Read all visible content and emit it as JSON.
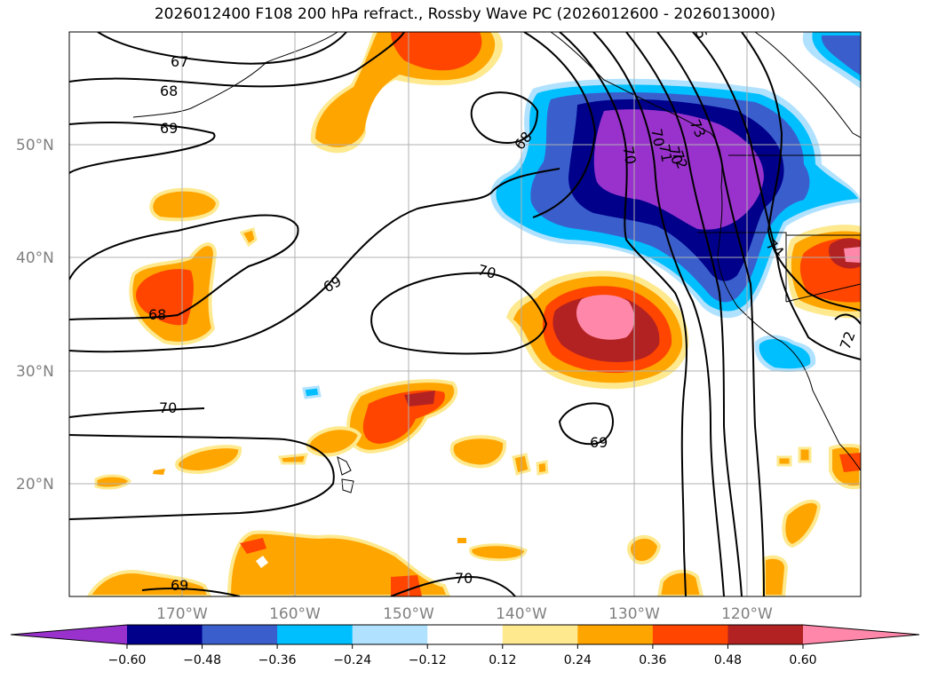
{
  "title": "2026012400 F108 200 hPa refract., Rossby Wave PC (2026012600 - 2026013000)",
  "lat_labels": [
    "50°N",
    "40°N",
    "30°N",
    "20°N"
  ],
  "lon_labels": [
    "170°W",
    "160°W",
    "150°W",
    "140°W",
    "130°W",
    "120°W"
  ],
  "contour_labels": [
    "67",
    "68",
    "69",
    "69",
    "68",
    "68",
    "69",
    "70",
    "70",
    "69",
    "70",
    "70",
    "70",
    "70",
    "71",
    "72",
    "73",
    "74",
    "72",
    "5"
  ],
  "colorbar": {
    "colors": [
      "#9932cc",
      "#00008b",
      "#3a5fcd",
      "#00bfff",
      "#b0e2ff",
      "#ffffff",
      "#fee98f",
      "#ffa500",
      "#ff4500",
      "#b22222",
      "#ff88aa"
    ],
    "ticks": [
      "−0.60",
      "−0.48",
      "−0.36",
      "−0.24",
      "−0.12",
      "0.12",
      "0.24",
      "0.36",
      "0.48",
      "0.60"
    ]
  }
}
